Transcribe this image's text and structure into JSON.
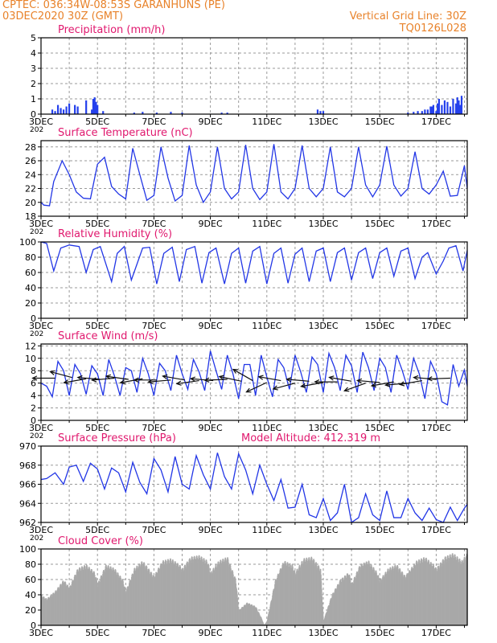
{
  "header": {
    "line1": "CPTEC:   036:34W-08:53S   GARANHUNS (PE)",
    "line2": "03DEC2020 30Z (GMT)",
    "grid_note": "Vertical Grid Line: 30Z",
    "code": "TQ0126L028"
  },
  "colors": {
    "header": "#e8822a",
    "title": "#e0186e",
    "series": "#2236e6",
    "bars": "#2440ec",
    "cloud": "#a9a9a9",
    "grid": "#9a9a9a",
    "arrow": "#111111"
  },
  "chart_data": [
    {
      "type": "bar",
      "title": "Precipitation (mm/h)",
      "ylim": [
        0,
        5
      ],
      "yticks": [
        0,
        1,
        2,
        3,
        4,
        5
      ],
      "x_labels": [
        "3DEC",
        "5DEC",
        "7DEC",
        "9DEC",
        "11DEC",
        "13DEC",
        "15DEC",
        "17DEC"
      ],
      "x_range_days": [
        3,
        18.1
      ],
      "year_fragment": "202",
      "x": [
        3.4,
        3.5,
        3.6,
        3.7,
        3.8,
        3.9,
        4.0,
        4.2,
        4.3,
        4.6,
        4.8,
        4.85,
        4.9,
        4.95,
        5.0,
        5.2,
        6.3,
        6.6,
        7.1,
        7.6,
        8.0,
        9.4,
        9.6,
        12.8,
        12.9,
        13.0,
        16.0,
        16.2,
        16.35,
        16.5,
        16.6,
        16.7,
        16.8,
        16.85,
        16.9,
        17.0,
        17.05,
        17.1,
        17.2,
        17.3,
        17.4,
        17.5,
        17.6,
        17.7,
        17.75,
        17.8,
        17.85,
        17.9
      ],
      "values": [
        0.3,
        0.2,
        0.6,
        0.4,
        0.3,
        0.5,
        0.7,
        0.6,
        0.5,
        0.9,
        0.3,
        1.0,
        1.1,
        0.8,
        0.6,
        0.2,
        0.1,
        0.15,
        0.1,
        0.15,
        0.1,
        0.1,
        0.1,
        0.3,
        0.2,
        0.2,
        0.1,
        0.15,
        0.2,
        0.2,
        0.3,
        0.3,
        0.5,
        0.5,
        0.6,
        0.2,
        0.7,
        1.0,
        0.6,
        0.9,
        0.8,
        0.5,
        1.0,
        0.7,
        1.1,
        0.9,
        0.6,
        1.2
      ]
    },
    {
      "type": "line",
      "title": "Surface Temperature (nC)",
      "ylim": [
        18,
        28.9
      ],
      "yticks": [
        18,
        20,
        22,
        24,
        26,
        28
      ],
      "x_labels": [
        "3DEC",
        "5DEC",
        "7DEC",
        "9DEC",
        "11DEC",
        "13DEC",
        "15DEC",
        "17DEC"
      ],
      "x_range_days": [
        3,
        18.1
      ],
      "year_fragment": "202",
      "x": [
        3.0,
        3.1,
        3.3,
        3.45,
        3.75,
        4.0,
        4.25,
        4.5,
        4.75,
        5.0,
        5.25,
        5.5,
        5.75,
        6.0,
        6.25,
        6.5,
        6.75,
        7.0,
        7.25,
        7.5,
        7.75,
        8.0,
        8.25,
        8.5,
        8.75,
        9.0,
        9.25,
        9.5,
        9.75,
        10.0,
        10.25,
        10.5,
        10.75,
        11.0,
        11.25,
        11.5,
        11.75,
        12.0,
        12.25,
        12.5,
        12.75,
        13.0,
        13.25,
        13.5,
        13.75,
        14.0,
        14.25,
        14.5,
        14.75,
        15.0,
        15.25,
        15.5,
        15.75,
        16.0,
        16.25,
        16.5,
        16.75,
        17.0,
        17.25,
        17.5,
        17.75,
        18.0,
        18.1
      ],
      "values": [
        20.0,
        19.6,
        19.5,
        23.0,
        26.0,
        24.0,
        21.5,
        20.6,
        20.5,
        25.5,
        26.5,
        22.3,
        21.2,
        20.5,
        27.8,
        24.0,
        20.3,
        21.0,
        28.0,
        23.5,
        20.2,
        21.0,
        28.2,
        22.5,
        20.0,
        21.5,
        28.0,
        22.0,
        20.5,
        21.5,
        28.3,
        22.0,
        20.4,
        21.5,
        28.4,
        21.5,
        20.5,
        22.0,
        28.2,
        22.0,
        20.8,
        22.0,
        28.0,
        21.5,
        20.8,
        22.0,
        28.0,
        22.5,
        20.8,
        22.5,
        28.1,
        22.5,
        20.9,
        22.0,
        27.3,
        22.0,
        21.2,
        22.5,
        24.5,
        20.9,
        21.0,
        25.3,
        22.0
      ]
    },
    {
      "type": "line",
      "title": "Relative Humidity (%)",
      "ylim": [
        0,
        100
      ],
      "yticks": [
        0,
        20,
        40,
        60,
        80,
        100
      ],
      "x_labels": [
        "3DEC",
        "5DEC",
        "7DEC",
        "9DEC",
        "11DEC",
        "13DEC",
        "15DEC",
        "17DEC"
      ],
      "x_range_days": [
        3,
        18.1
      ],
      "year_fragment": "202",
      "x": [
        3.0,
        3.2,
        3.45,
        3.7,
        4.0,
        4.35,
        4.6,
        4.85,
        5.1,
        5.5,
        5.7,
        5.95,
        6.2,
        6.6,
        6.85,
        7.1,
        7.35,
        7.65,
        7.9,
        8.15,
        8.45,
        8.7,
        8.95,
        9.2,
        9.5,
        9.75,
        10.0,
        10.25,
        10.5,
        10.75,
        11.0,
        11.25,
        11.5,
        11.75,
        12.0,
        12.25,
        12.5,
        12.75,
        13.0,
        13.25,
        13.5,
        13.75,
        14.0,
        14.25,
        14.5,
        14.75,
        15.0,
        15.25,
        15.5,
        15.75,
        16.0,
        16.25,
        16.5,
        16.7,
        17.0,
        17.25,
        17.45,
        17.7,
        17.95,
        18.1
      ],
      "values": [
        100,
        98,
        62,
        92,
        96,
        94,
        60,
        90,
        94,
        48,
        85,
        94,
        50,
        92,
        93,
        45,
        85,
        93,
        48,
        90,
        94,
        46,
        86,
        92,
        45,
        85,
        92,
        46,
        88,
        94,
        45,
        85,
        92,
        46,
        84,
        92,
        48,
        88,
        92,
        48,
        86,
        92,
        50,
        86,
        92,
        52,
        86,
        92,
        55,
        88,
        92,
        52,
        80,
        86,
        58,
        75,
        92,
        95,
        62,
        89
      ]
    },
    {
      "type": "line",
      "title": "Surface Wind (m/s)",
      "ylim": [
        0,
        12.3
      ],
      "yticks": [
        0,
        2,
        4,
        6,
        8,
        10,
        12
      ],
      "x_labels": [
        "3DEC",
        "5DEC",
        "7DEC",
        "9DEC",
        "11DEC",
        "13DEC",
        "15DEC",
        "17DEC"
      ],
      "x_range_days": [
        3,
        18.1
      ],
      "year_fragment": "202",
      "x": [
        3.0,
        3.2,
        3.4,
        3.6,
        3.8,
        4.0,
        4.2,
        4.4,
        4.6,
        4.8,
        5.0,
        5.2,
        5.4,
        5.6,
        5.8,
        6.0,
        6.2,
        6.4,
        6.6,
        6.8,
        7.0,
        7.2,
        7.4,
        7.6,
        7.8,
        8.0,
        8.2,
        8.4,
        8.6,
        8.8,
        9.0,
        9.2,
        9.4,
        9.6,
        9.8,
        10.0,
        10.2,
        10.4,
        10.6,
        10.8,
        11.0,
        11.2,
        11.4,
        11.6,
        11.8,
        12.0,
        12.2,
        12.4,
        12.6,
        12.8,
        13.0,
        13.2,
        13.4,
        13.6,
        13.8,
        14.0,
        14.2,
        14.4,
        14.6,
        14.8,
        15.0,
        15.2,
        15.4,
        15.6,
        15.8,
        16.0,
        16.2,
        16.4,
        16.6,
        16.8,
        17.0,
        17.2,
        17.4,
        17.6,
        17.8,
        18.0,
        18.1
      ],
      "values": [
        6.0,
        5.5,
        3.8,
        9.5,
        8.0,
        4.0,
        9.0,
        7.5,
        4.2,
        8.8,
        7.5,
        4.0,
        9.8,
        7.2,
        4.0,
        8.5,
        8.0,
        4.5,
        10.0,
        7.5,
        4.0,
        9.2,
        8.0,
        4.8,
        10.5,
        7.5,
        5.0,
        9.8,
        7.8,
        4.8,
        11.2,
        8.0,
        5.0,
        10.5,
        7.5,
        3.5,
        9.0,
        9.0,
        4.0,
        10.5,
        7.0,
        3.8,
        9.8,
        8.5,
        5.0,
        10.5,
        7.8,
        4.5,
        10.2,
        9.0,
        4.5,
        10.8,
        8.5,
        4.8,
        10.5,
        8.8,
        4.5,
        11.0,
        8.5,
        4.8,
        10.0,
        8.5,
        4.5,
        10.5,
        8.0,
        5.0,
        10.0,
        7.5,
        3.5,
        9.5,
        7.5,
        3.0,
        2.5,
        9.0,
        5.5,
        8.2,
        5.5
      ],
      "arrow_x": [
        3.5,
        4.1,
        4.6,
        5.1,
        5.6,
        6.1,
        6.6,
        7.1,
        7.6,
        8.1,
        8.6,
        9.1,
        9.6,
        10.1,
        10.5,
        11.0,
        11.5,
        12.0,
        12.5,
        13.0,
        13.5,
        14.0,
        14.5,
        15.0,
        15.5,
        16.0,
        16.5,
        17.0,
        17.5
      ],
      "arrow_y": [
        6.8,
        6.9,
        6.7,
        6.6,
        6.8,
        6.6,
        6.7,
        6.5,
        6.5,
        6.5,
        6.4,
        6.4,
        6.6,
        6.3,
        6.4,
        6.1,
        6.4,
        6.0,
        6.3,
        6.1,
        6.2,
        6.3,
        6.0,
        6.1,
        6.2,
        6.0,
        6.4,
        6.6,
        6.8
      ],
      "arrow_angle_deg": [
        180,
        165,
        190,
        175,
        185,
        172,
        190,
        180,
        185,
        170,
        188,
        175,
        182,
        168,
        150,
        205,
        170,
        195,
        175,
        190,
        180,
        170,
        200,
        175,
        190,
        185,
        190,
        175,
        182
      ]
    },
    {
      "type": "line",
      "title": "Surface Pressure (hPa)",
      "annotation": "Model Altitude: 412.319  m",
      "ylim": [
        962,
        970
      ],
      "yticks": [
        962,
        964,
        966,
        968,
        970
      ],
      "x_labels": [
        "3DEC",
        "5DEC",
        "7DEC",
        "9DEC",
        "11DEC",
        "13DEC",
        "15DEC",
        "17DEC"
      ],
      "x_range_days": [
        3,
        18.1
      ],
      "year_fragment": "202",
      "x": [
        3.0,
        3.2,
        3.5,
        3.8,
        4.0,
        4.25,
        4.5,
        4.75,
        5.0,
        5.25,
        5.5,
        5.75,
        6.0,
        6.25,
        6.5,
        6.75,
        7.0,
        7.25,
        7.5,
        7.75,
        8.0,
        8.25,
        8.5,
        8.75,
        9.0,
        9.25,
        9.5,
        9.75,
        10.0,
        10.25,
        10.5,
        10.75,
        11.0,
        11.25,
        11.5,
        11.75,
        12.0,
        12.25,
        12.5,
        12.75,
        13.0,
        13.25,
        13.5,
        13.75,
        14.0,
        14.25,
        14.5,
        14.75,
        15.0,
        15.25,
        15.5,
        15.75,
        16.0,
        16.25,
        16.5,
        16.75,
        17.0,
        17.25,
        17.5,
        17.75,
        18.0,
        18.1
      ],
      "values": [
        966.5,
        966.6,
        967.2,
        966.0,
        967.8,
        968.0,
        966.3,
        968.2,
        967.6,
        965.5,
        967.7,
        967.2,
        965.2,
        968.3,
        966.2,
        965.0,
        968.7,
        967.5,
        965.2,
        968.9,
        966.0,
        965.5,
        969.0,
        967.0,
        965.5,
        969.3,
        966.8,
        965.5,
        969.2,
        967.5,
        965.0,
        968.0,
        966.0,
        964.3,
        966.5,
        963.5,
        963.6,
        966.0,
        962.8,
        962.5,
        964.5,
        962.2,
        963.0,
        966.0,
        962.0,
        962.5,
        965.0,
        962.8,
        962.2,
        965.3,
        962.5,
        962.5,
        964.5,
        963.0,
        962.2,
        963.5,
        962.3,
        962.0,
        963.6,
        962.2,
        963.5,
        963.9
      ]
    },
    {
      "type": "area",
      "title": "Cloud Cover (%)",
      "ylim": [
        0,
        100
      ],
      "yticks": [
        0,
        20,
        40,
        60,
        80,
        100
      ],
      "x_labels": [
        "3DEC",
        "5DEC",
        "7DEC",
        "9DEC",
        "11DEC",
        "13DEC",
        "15DEC",
        "17DEC"
      ],
      "x_range_days": [
        3,
        18.1
      ],
      "x": [
        3.0,
        3.2,
        3.5,
        3.8,
        4.0,
        4.3,
        4.6,
        4.9,
        5.0,
        5.3,
        5.6,
        5.9,
        6.0,
        6.3,
        6.6,
        6.9,
        7.0,
        7.3,
        7.6,
        7.9,
        8.0,
        8.3,
        8.6,
        8.9,
        9.0,
        9.3,
        9.6,
        9.9,
        10.0,
        10.3,
        10.6,
        10.8,
        10.9,
        11.0,
        11.3,
        11.6,
        11.9,
        12.0,
        12.3,
        12.6,
        12.9,
        13.0,
        13.3,
        13.6,
        13.9,
        14.0,
        14.3,
        14.6,
        14.9,
        15.0,
        15.3,
        15.6,
        15.9,
        16.0,
        16.3,
        16.6,
        16.9,
        17.0,
        17.3,
        17.6,
        17.9,
        18.1
      ],
      "values": [
        40,
        35,
        45,
        60,
        50,
        75,
        80,
        70,
        55,
        80,
        75,
        60,
        45,
        75,
        85,
        70,
        65,
        85,
        88,
        80,
        75,
        90,
        92,
        85,
        70,
        85,
        90,
        60,
        20,
        30,
        25,
        10,
        0,
        5,
        60,
        85,
        80,
        70,
        88,
        90,
        75,
        5,
        40,
        60,
        70,
        55,
        80,
        85,
        70,
        60,
        75,
        80,
        65,
        70,
        85,
        90,
        80,
        75,
        90,
        95,
        85,
        95
      ]
    }
  ]
}
